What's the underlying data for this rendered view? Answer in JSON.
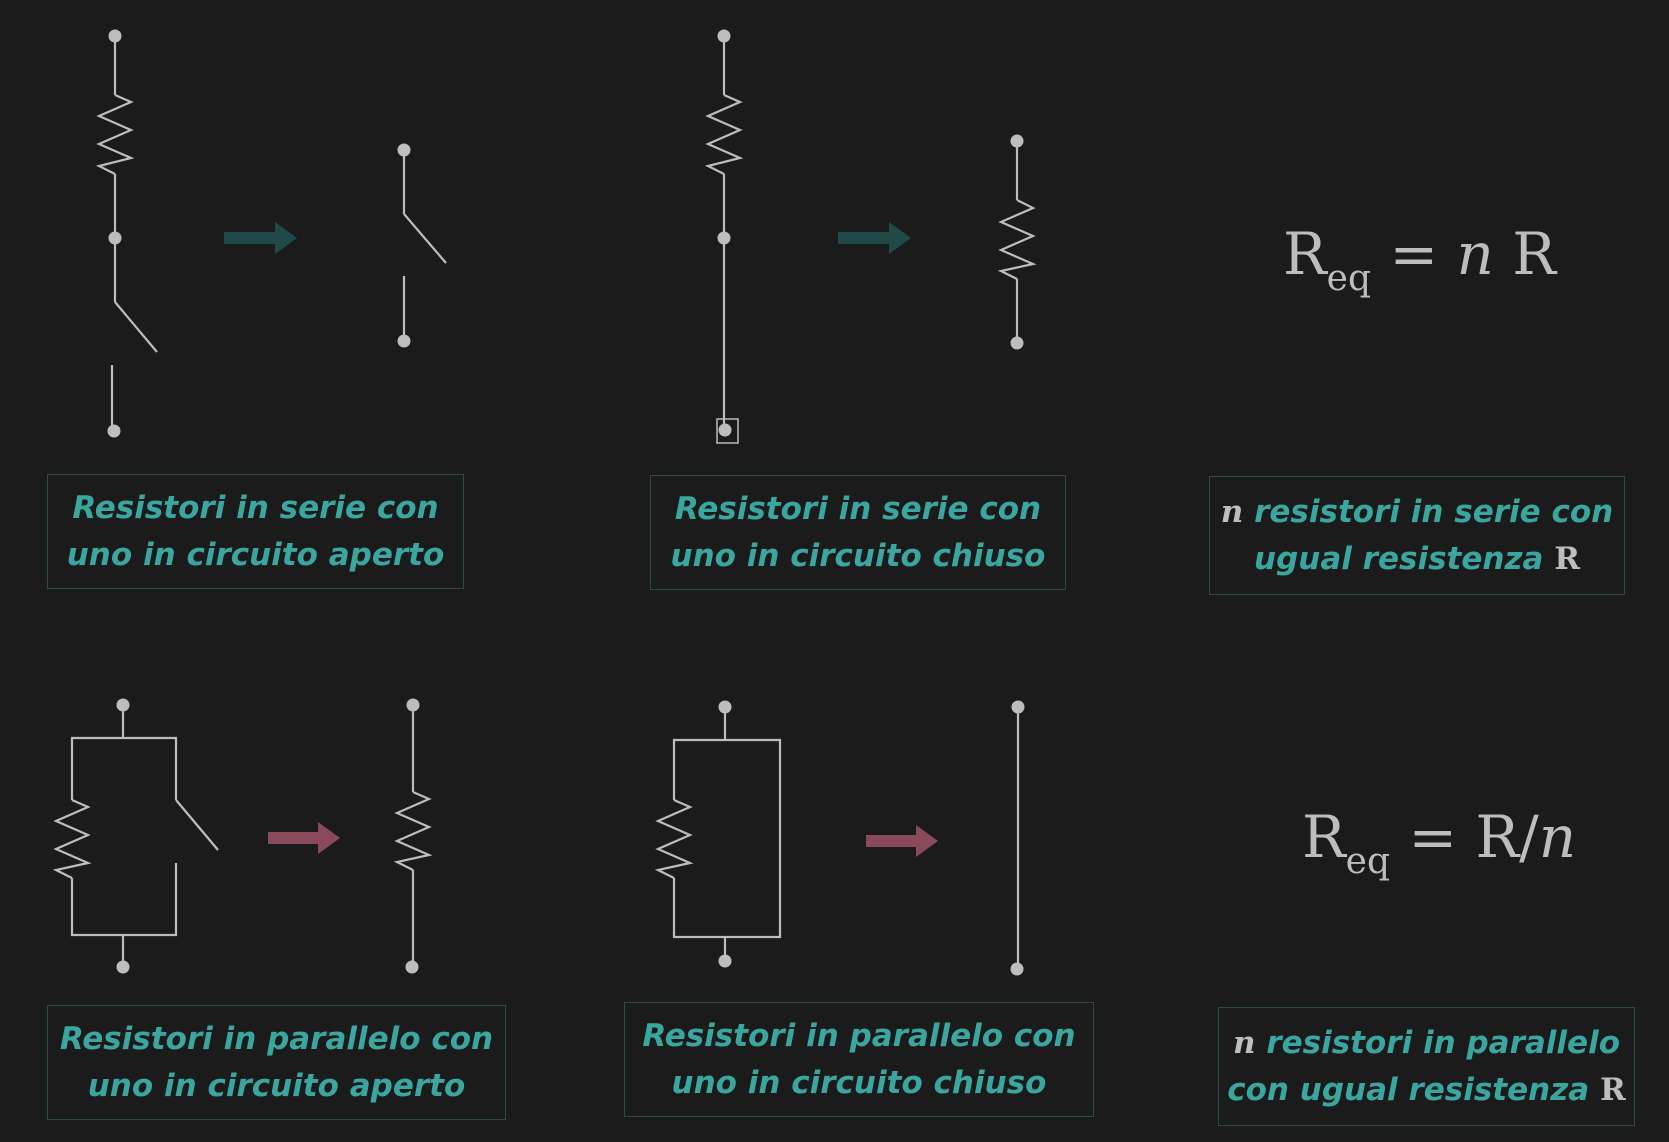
{
  "captions": {
    "series_open": {
      "line1": "Resistori in serie con",
      "line2": "uno in circuito aperto"
    },
    "series_closed": {
      "line1": "Resistori in serie con",
      "line2": "uno in circuito chiuso"
    },
    "series_n": {
      "n": "n",
      "line1_rest": " resistori in serie con",
      "line2_rest": "ugual resistenza ",
      "R": "R"
    },
    "parallel_open": {
      "line1": "Resistori in parallelo con",
      "line2": "uno in circuito aperto"
    },
    "parallel_closed": {
      "line1": "Resistori in parallelo con",
      "line2": "uno in circuito chiuso"
    },
    "parallel_n": {
      "n": "n",
      "line1_rest": " resistori in parallelo",
      "line2_rest": "con ugual resistenza ",
      "R": "R"
    }
  },
  "formulas": {
    "series": {
      "R": "R",
      "sub": "eq",
      "eq": " = ",
      "n": "n",
      "rest": " R"
    },
    "parallel": {
      "R": "R",
      "sub": "eq",
      "eq": " = R/",
      "n": "n"
    }
  },
  "colors": {
    "background": "#1b1b1b",
    "wire": "#bdbdbd",
    "caption_text": "#3aa6a0",
    "caption_border": "#2b4a48",
    "arrow_series": "#1f4a48",
    "arrow_parallel": "#8a4a5a"
  }
}
